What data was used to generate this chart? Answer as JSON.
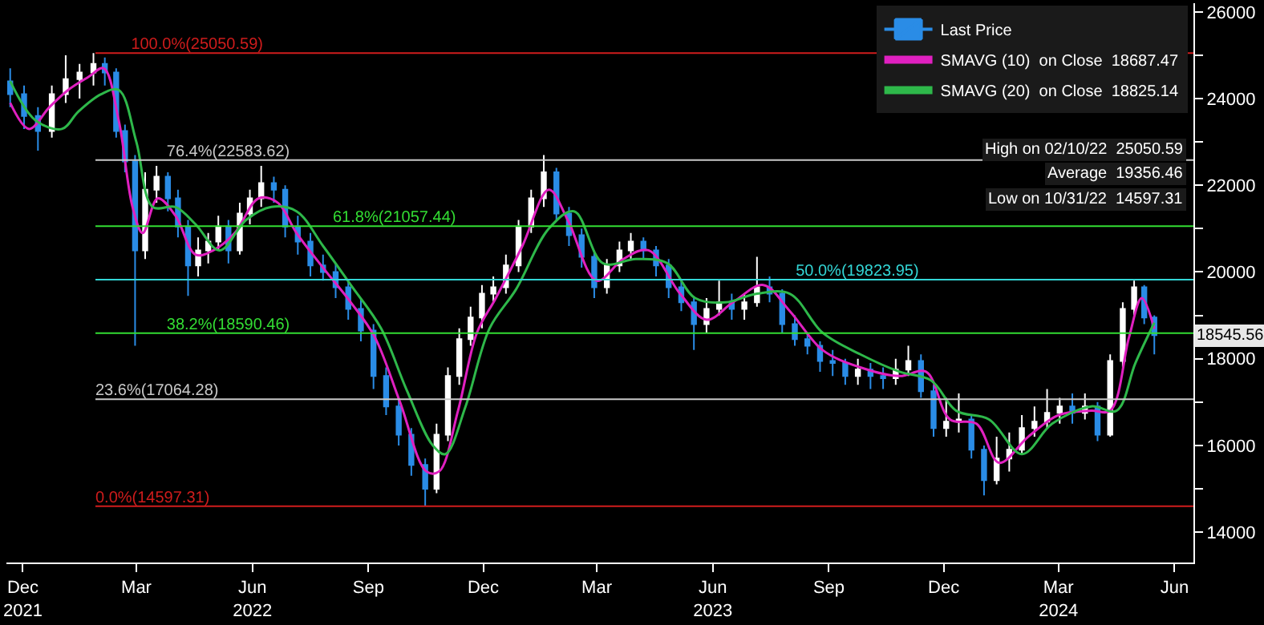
{
  "chart_data": {
    "type": "candlestick",
    "x": [
      "2021-12-05",
      "2021-12-16",
      "2021-12-27",
      "2022-01-07",
      "2022-01-18",
      "2022-01-29",
      "2022-02-09",
      "2022-02-18",
      "2022-02-27",
      "2022-03-06",
      "2022-03-14",
      "2022-03-22",
      "2022-03-31",
      "2022-04-09",
      "2022-04-17",
      "2022-04-25",
      "2022-05-03",
      "2022-05-11",
      "2022-05-19",
      "2022-05-27",
      "2022-06-05",
      "2022-06-13",
      "2022-06-22",
      "2022-07-02",
      "2022-07-11",
      "2022-07-21",
      "2022-07-31",
      "2022-08-10",
      "2022-08-20",
      "2022-08-30",
      "2022-09-09",
      "2022-09-19",
      "2022-09-29",
      "2022-10-09",
      "2022-10-19",
      "2022-10-30",
      "2022-11-08",
      "2022-11-17",
      "2022-11-26",
      "2022-12-05",
      "2022-12-14",
      "2022-12-23",
      "2023-01-02",
      "2023-01-12",
      "2023-01-22",
      "2023-02-01",
      "2023-02-11",
      "2023-02-21",
      "2023-03-03",
      "2023-03-13",
      "2023-03-23",
      "2023-04-02",
      "2023-04-11",
      "2023-04-21",
      "2023-05-01",
      "2023-05-11",
      "2023-05-21",
      "2023-05-31",
      "2023-06-10",
      "2023-06-20",
      "2023-06-30",
      "2023-07-10",
      "2023-07-20",
      "2023-07-30",
      "2023-08-09",
      "2023-08-19",
      "2023-08-29",
      "2023-09-08",
      "2023-09-18",
      "2023-09-28",
      "2023-10-08",
      "2023-10-18",
      "2023-10-28",
      "2023-11-07",
      "2023-11-17",
      "2023-11-27",
      "2023-12-07",
      "2023-12-17",
      "2023-12-27",
      "2024-01-06",
      "2024-01-16",
      "2024-01-26",
      "2024-02-05",
      "2024-02-15",
      "2024-02-25",
      "2024-03-06",
      "2024-03-16",
      "2024-03-26",
      "2024-04-05",
      "2024-04-15",
      "2024-04-25",
      "2024-05-05",
      "2024-05-14",
      "2024-05-22",
      "2024-05-30"
    ],
    "series": [
      {
        "name": "Last Price",
        "colors": [
          "#2a8ce6",
          "#2a8ce6",
          "#2a8ce6",
          "#ffffff",
          "#ffffff",
          "#ffffff",
          "#ffffff",
          "#2a8ce6",
          "#2a8ce6",
          "#2a8ce6",
          "#2a8ce6",
          "#ffffff",
          "#ffffff",
          "#2a8ce6",
          "#2a8ce6",
          "#2a8ce6",
          "#ffffff",
          "#ffffff",
          "#ffffff",
          "#2a8ce6",
          "#ffffff",
          "#ffffff",
          "#ffffff",
          "#2a8ce6",
          "#2a8ce6",
          "#2a8ce6",
          "#2a8ce6",
          "#2a8ce6",
          "#2a8ce6",
          "#2a8ce6",
          "#2a8ce6",
          "#2a8ce6",
          "#2a8ce6",
          "#2a8ce6",
          "#2a8ce6",
          "#2a8ce6",
          "#ffffff",
          "#ffffff",
          "#ffffff",
          "#ffffff",
          "#ffffff",
          "#ffffff",
          "#ffffff",
          "#ffffff",
          "#ffffff",
          "#ffffff",
          "#2a8ce6",
          "#2a8ce6",
          "#2a8ce6",
          "#2a8ce6",
          "#ffffff",
          "#ffffff",
          "#ffffff",
          "#2a8ce6",
          "#2a8ce6",
          "#2a8ce6",
          "#2a8ce6",
          "#2a8ce6",
          "#ffffff",
          "#ffffff",
          "#2a8ce6",
          "#ffffff",
          "#ffffff",
          "#2a8ce6",
          "#2a8ce6",
          "#2a8ce6",
          "#2a8ce6",
          "#2a8ce6",
          "#2a8ce6",
          "#2a8ce6",
          "#ffffff",
          "#2a8ce6",
          "#2a8ce6",
          "#ffffff",
          "#ffffff",
          "#2a8ce6",
          "#2a8ce6",
          "#ffffff",
          "#ffffff",
          "#2a8ce6",
          "#2a8ce6",
          "#ffffff",
          "#ffffff",
          "#ffffff",
          "#ffffff",
          "#ffffff",
          "#ffffff",
          "#2a8ce6",
          "#ffffff",
          "#2a8ce6",
          "#ffffff",
          "#ffffff",
          "#ffffff",
          "#2a8ce6",
          "#2a8ce6"
        ],
        "ohlc": [
          [
            24400,
            24700,
            23800,
            24100
          ],
          [
            24100,
            24300,
            23300,
            23600
          ],
          [
            23600,
            23800,
            22800,
            23250
          ],
          [
            23250,
            24300,
            23100,
            24100
          ],
          [
            24100,
            25000,
            23900,
            24450
          ],
          [
            24450,
            24800,
            24000,
            24600
          ],
          [
            24600,
            25050.59,
            24300,
            24800
          ],
          [
            24800,
            24950,
            24300,
            24600
          ],
          [
            24600,
            24700,
            23100,
            23250
          ],
          [
            23250,
            23400,
            22300,
            22550
          ],
          [
            22550,
            22700,
            18300,
            20500
          ],
          [
            20500,
            22300,
            20300,
            21900
          ],
          [
            21900,
            22450,
            21600,
            22200
          ],
          [
            22200,
            22300,
            21400,
            21700
          ],
          [
            21700,
            21900,
            20800,
            21050
          ],
          [
            21050,
            21200,
            19450,
            20150
          ],
          [
            20150,
            20800,
            19900,
            20500
          ],
          [
            20500,
            20900,
            20200,
            20700
          ],
          [
            20700,
            21300,
            20500,
            21050
          ],
          [
            21050,
            21200,
            20200,
            20500
          ],
          [
            20500,
            21600,
            20400,
            21350
          ],
          [
            21350,
            21900,
            21100,
            21700
          ],
          [
            21700,
            22450,
            21500,
            22050
          ],
          [
            22050,
            22200,
            21600,
            21900
          ],
          [
            21900,
            22000,
            20800,
            21050
          ],
          [
            21050,
            21300,
            20400,
            20700
          ],
          [
            20700,
            20900,
            19900,
            20150
          ],
          [
            20150,
            20400,
            19800,
            20000
          ],
          [
            20000,
            20200,
            19400,
            19650
          ],
          [
            19650,
            19800,
            18900,
            19150
          ],
          [
            19150,
            19400,
            18400,
            18650
          ],
          [
            18650,
            18800,
            17300,
            17600
          ],
          [
            17600,
            17800,
            16700,
            16900
          ],
          [
            16900,
            17100,
            16000,
            16250
          ],
          [
            16250,
            16400,
            15300,
            15550
          ],
          [
            15550,
            15700,
            14597.31,
            15000
          ],
          [
            15000,
            16500,
            14900,
            16250
          ],
          [
            16250,
            17800,
            16100,
            17600
          ],
          [
            17600,
            18700,
            17400,
            18450
          ],
          [
            18450,
            19200,
            18300,
            18950
          ],
          [
            18950,
            19700,
            18700,
            19500
          ],
          [
            19500,
            19900,
            19300,
            19650
          ],
          [
            19650,
            20400,
            19500,
            20150
          ],
          [
            20150,
            21200,
            20000,
            21050
          ],
          [
            21050,
            21900,
            20900,
            21700
          ],
          [
            21700,
            22700,
            21500,
            22300
          ],
          [
            22300,
            22400,
            21200,
            21350
          ],
          [
            21350,
            21500,
            20600,
            20850
          ],
          [
            20850,
            21000,
            20100,
            20350
          ],
          [
            20350,
            20500,
            19400,
            19650
          ],
          [
            19650,
            20300,
            19500,
            20150
          ],
          [
            20150,
            20700,
            20000,
            20500
          ],
          [
            20500,
            20900,
            20300,
            20700
          ],
          [
            20700,
            20800,
            20300,
            20500
          ],
          [
            20500,
            20600,
            19900,
            20150
          ],
          [
            20150,
            20300,
            19400,
            19650
          ],
          [
            19650,
            19800,
            19100,
            19300
          ],
          [
            19300,
            19400,
            18200,
            18800
          ],
          [
            18800,
            19400,
            18600,
            19150
          ],
          [
            19150,
            19800,
            19000,
            19300
          ],
          [
            19300,
            19500,
            18900,
            19150
          ],
          [
            19150,
            19500,
            18900,
            19300
          ],
          [
            19300,
            20350,
            19200,
            19650
          ],
          [
            19650,
            19900,
            19300,
            19500
          ],
          [
            19500,
            19600,
            18600,
            18800
          ],
          [
            18800,
            19000,
            18300,
            18450
          ],
          [
            18450,
            18600,
            18100,
            18300
          ],
          [
            18300,
            18400,
            17700,
            17950
          ],
          [
            17950,
            18200,
            17600,
            17900
          ],
          [
            17900,
            18000,
            17400,
            17600
          ],
          [
            17600,
            18000,
            17400,
            17750
          ],
          [
            17750,
            17900,
            17300,
            17600
          ],
          [
            17600,
            17800,
            17300,
            17550
          ],
          [
            17550,
            18000,
            17400,
            17750
          ],
          [
            17750,
            18300,
            17600,
            17950
          ],
          [
            17950,
            18100,
            17100,
            17250
          ],
          [
            17250,
            17400,
            16200,
            16400
          ],
          [
            16400,
            17100,
            16200,
            16550
          ],
          [
            16550,
            17200,
            16300,
            16600
          ],
          [
            16600,
            16700,
            15700,
            15900
          ],
          [
            15900,
            16000,
            14850,
            15200
          ],
          [
            15200,
            16200,
            15100,
            15700
          ],
          [
            15700,
            16300,
            15400,
            15900
          ],
          [
            15900,
            16700,
            15800,
            16400
          ],
          [
            16400,
            16900,
            16200,
            16550
          ],
          [
            16550,
            17300,
            16400,
            16750
          ],
          [
            16750,
            17100,
            16500,
            16900
          ],
          [
            16900,
            17200,
            16500,
            16750
          ],
          [
            16750,
            17200,
            16600,
            16900
          ],
          [
            16900,
            17000,
            16100,
            16250
          ],
          [
            16250,
            18100,
            16200,
            17950
          ],
          [
            17950,
            19300,
            17800,
            19150
          ],
          [
            19150,
            19800,
            19000,
            19650
          ],
          [
            19650,
            19700,
            18800,
            18950
          ],
          [
            18950,
            19000,
            18100,
            18545.56
          ]
        ]
      },
      {
        "name": "SMAVG (10)  on Close  18687.47",
        "type": "line",
        "color": "#e020c0",
        "x": [
          "2021-12-05",
          "2021-12-20",
          "2022-01-05",
          "2022-01-20",
          "2022-02-05",
          "2022-02-17",
          "2022-03-01",
          "2022-03-12",
          "2022-03-20",
          "2022-04-01",
          "2022-04-15",
          "2022-05-01",
          "2022-05-15",
          "2022-06-01",
          "2022-06-20",
          "2022-07-05",
          "2022-07-20",
          "2022-08-10",
          "2022-09-01",
          "2022-09-20",
          "2022-10-10",
          "2022-10-31",
          "2022-11-10",
          "2022-11-25",
          "2022-12-10",
          "2022-12-25",
          "2023-01-15",
          "2023-02-05",
          "2023-02-20",
          "2023-03-15",
          "2023-04-05",
          "2023-04-25",
          "2023-05-20",
          "2023-06-10",
          "2023-07-01",
          "2023-07-25",
          "2023-08-15",
          "2023-09-10",
          "2023-10-10",
          "2023-11-10",
          "2023-12-01",
          "2023-12-20",
          "2024-01-10",
          "2024-01-28",
          "2024-02-20",
          "2024-03-15",
          "2024-04-10",
          "2024-04-25",
          "2024-05-10",
          "2024-05-20",
          "2024-05-30"
        ],
        "values": [
          23900,
          23300,
          23800,
          24200,
          24500,
          24700,
          23500,
          21500,
          20900,
          21700,
          21300,
          20400,
          20500,
          20900,
          21700,
          21600,
          20900,
          20100,
          19300,
          18500,
          17000,
          15400,
          15400,
          16800,
          18600,
          19400,
          20600,
          21900,
          21200,
          19800,
          20300,
          20500,
          19500,
          18900,
          19300,
          19700,
          19100,
          18200,
          17800,
          17600,
          17700,
          16600,
          16500,
          15600,
          16200,
          16700,
          16800,
          16800,
          18500,
          19400,
          18690
        ]
      },
      {
        "name": "SMAVG (20)  on Close  18825.14",
        "type": "line",
        "color": "#2eb84a",
        "x": [
          "2021-12-05",
          "2021-12-25",
          "2022-01-15",
          "2022-01-28",
          "2022-02-15",
          "2022-03-01",
          "2022-03-15",
          "2022-03-28",
          "2022-04-15",
          "2022-05-01",
          "2022-05-20",
          "2022-06-10",
          "2022-06-30",
          "2022-07-20",
          "2022-08-10",
          "2022-09-01",
          "2022-09-25",
          "2022-10-15",
          "2022-11-05",
          "2022-11-15",
          "2022-12-01",
          "2022-12-20",
          "2023-01-10",
          "2023-02-05",
          "2023-02-25",
          "2023-03-20",
          "2023-04-15",
          "2023-05-10",
          "2023-06-01",
          "2023-06-25",
          "2023-07-20",
          "2023-08-15",
          "2023-09-10",
          "2023-10-10",
          "2023-11-10",
          "2023-12-05",
          "2023-12-25",
          "2024-01-20",
          "2024-02-15",
          "2024-03-10",
          "2024-04-10",
          "2024-04-30",
          "2024-05-15",
          "2024-05-30"
        ],
        "values": [
          24400,
          23500,
          23300,
          23700,
          24100,
          24200,
          23000,
          21500,
          21500,
          21100,
          20500,
          21200,
          21500,
          21400,
          20600,
          19700,
          18700,
          17300,
          16000,
          15800,
          16900,
          18700,
          19600,
          21000,
          21400,
          20200,
          20300,
          20200,
          19400,
          19300,
          19500,
          19500,
          18600,
          18100,
          17700,
          17500,
          16800,
          16600,
          15800,
          16500,
          16900,
          16800,
          17900,
          18830
        ]
      }
    ],
    "xlim": [
      "2021-12-02",
      "2024-06-30"
    ],
    "xticks": [
      {
        "value": "2021-12-15",
        "label": "Dec\n2021"
      },
      {
        "value": "2022-03-15",
        "label": "Mar"
      },
      {
        "value": "2022-06-15",
        "label": "Jun\n2022"
      },
      {
        "value": "2022-09-15",
        "label": "Sep"
      },
      {
        "value": "2022-12-15",
        "label": "Dec"
      },
      {
        "value": "2023-03-15",
        "label": "Mar"
      },
      {
        "value": "2023-06-15",
        "label": "Jun\n2023"
      },
      {
        "value": "2023-09-15",
        "label": "Sep"
      },
      {
        "value": "2023-12-15",
        "label": "Dec"
      },
      {
        "value": "2024-03-15",
        "label": "Mar\n2024"
      },
      {
        "value": "2024-06-15",
        "label": "Jun"
      }
    ],
    "ylim": [
      13300,
      26200
    ],
    "yticks": [
      14000,
      {
        "value": 15000,
        "label": null
      },
      16000,
      {
        "value": 17000,
        "label": null
      },
      18000,
      {
        "value": 19000,
        "label": null
      },
      20000,
      {
        "value": 21000,
        "label": null
      },
      22000,
      {
        "value": 23000,
        "label": null
      },
      24000,
      {
        "value": 25000,
        "label": null
      },
      26000
    ],
    "ref_lines": [
      {
        "axis": "y",
        "value": 25050.59,
        "label": "100.0%(25050.59)",
        "color": "#d01c1c"
      },
      {
        "axis": "y",
        "value": 22583.62,
        "label": "76.4%(22583.62)",
        "color": "#c8c8c8"
      },
      {
        "axis": "y",
        "value": 21057.44,
        "label": "61.8%(21057.44)",
        "color": "#33dd33"
      },
      {
        "axis": "y",
        "value": 19823.95,
        "label": "50.0%(19823.95)",
        "color": "#33d6d6"
      },
      {
        "axis": "y",
        "value": 18590.46,
        "label": "38.2%(18590.46)",
        "color": "#33dd33"
      },
      {
        "axis": "y",
        "value": 17064.28,
        "label": "23.6%(17064.28)",
        "color": "#c8c8c8"
      },
      {
        "axis": "y",
        "value": 14597.31,
        "label": "0.0%(14597.31)",
        "color": "#d01c1c"
      }
    ],
    "annotations": [
      "High on 02/10/22  25050.59",
      "Average  19356.46",
      "Low on 10/31/22  14597.31",
      "18545.56"
    ],
    "legend": "top right",
    "grid": false
  }
}
